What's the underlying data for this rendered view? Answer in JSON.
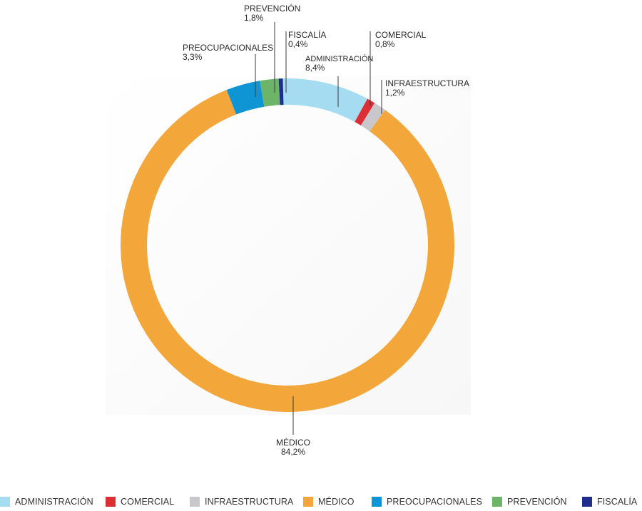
{
  "chart_data": {
    "type": "pie",
    "variant": "donut",
    "title": "",
    "legend_position": "bottom",
    "slices": [
      {
        "name": "ADMINISTRACIÓN",
        "value": 8.4,
        "label": "8,4%",
        "color": "#a6dcf1"
      },
      {
        "name": "COMERCIAL",
        "value": 0.8,
        "label": "0,8%",
        "color": "#dc2e35"
      },
      {
        "name": "INFRAESTRUCTURA",
        "value": 1.2,
        "label": "1,2%",
        "color": "#c7c7cc"
      },
      {
        "name": "MÉDICO",
        "value": 84.2,
        "label": "84,2%",
        "color": "#f3a73b"
      },
      {
        "name": "PREOCUPACIONALES",
        "value": 3.3,
        "label": "3,3%",
        "color": "#0f95d4"
      },
      {
        "name": "PREVENCIÓN",
        "value": 1.8,
        "label": "1,8%",
        "color": "#6db46b"
      },
      {
        "name": "FISCALÍA",
        "value": 0.4,
        "label": "0,4%",
        "color": "#1d2f8a"
      }
    ]
  }
}
